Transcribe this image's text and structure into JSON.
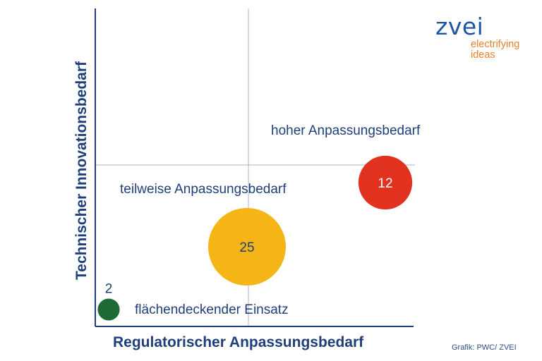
{
  "chart_data": {
    "type": "scatter",
    "xlabel": "Regulatorischer Anpassungsbedarf",
    "ylabel": "Technischer Innovationsbedarf",
    "quadrant_labels": [
      "hoher Anpassungsbedarf",
      "teilweise Anpassungsbedarf",
      "flächendeckender Einsatz"
    ],
    "points": [
      {
        "label": "2",
        "size": 2,
        "color": "#1e6a35",
        "text_color": "#1f3f7a",
        "label_outside": true
      },
      {
        "label": "25",
        "size": 25,
        "color": "#f5b516",
        "text_color": "#1f3f7a",
        "label_outside": false
      },
      {
        "label": "12",
        "size": 12,
        "color": "#e0321e",
        "text_color": "#ffffff",
        "label_outside": false
      }
    ],
    "colors": {
      "axis": "#1f3f7a",
      "guides": "#a9b4cf",
      "text": "#1f3f7a"
    }
  },
  "logo": {
    "main": "zvei",
    "line1": "electrifying",
    "line2": "ideas"
  },
  "source": "Grafik: PWC/ ZVEI"
}
